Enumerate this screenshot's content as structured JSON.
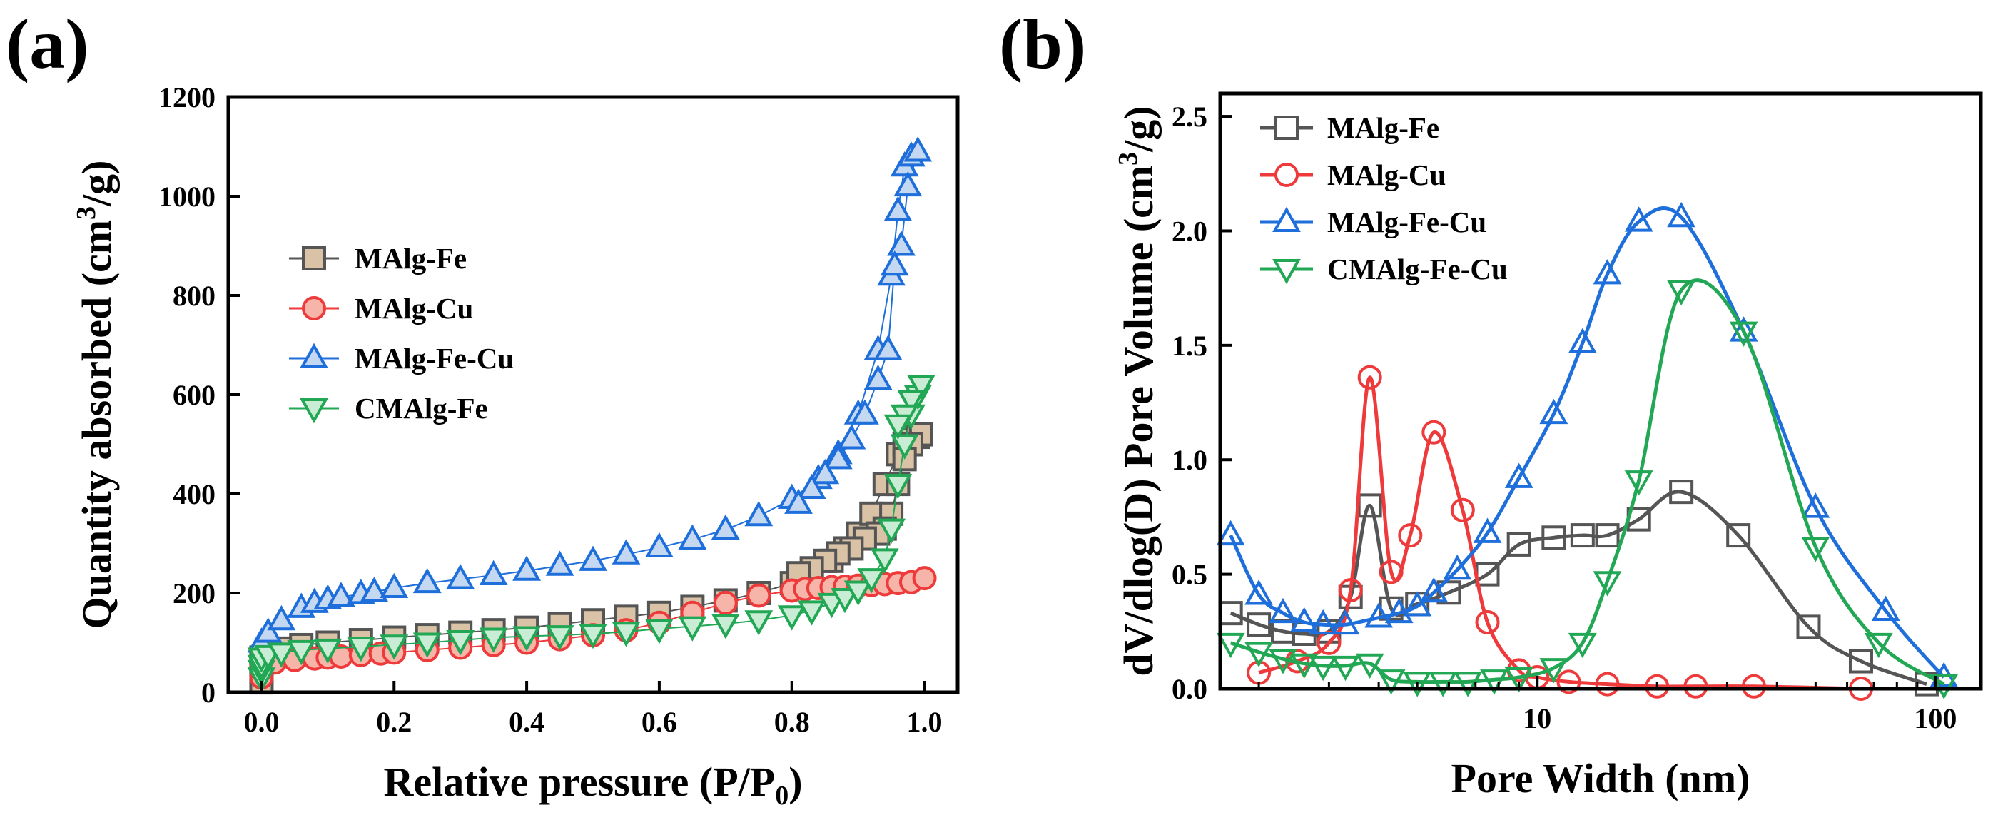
{
  "chart_data": [
    {
      "type": "scatter",
      "panel_label": "(a)",
      "xlabel_main": "Relative pressure (P/P",
      "xlabel_sub": "0",
      "xlabel_end": ")",
      "ylabel_pre": "Quantity absorbed (cm",
      "ylabel_sup": "3",
      "ylabel_post": "/g)",
      "xlim": [
        -0.05,
        1.05
      ],
      "ylim": [
        0,
        1200
      ],
      "x_ticks": [
        0.0,
        0.2,
        0.4,
        0.6,
        0.8,
        1.0
      ],
      "x_tick_labels": [
        "0.0",
        "0.2",
        "0.4",
        "0.6",
        "0.8",
        "1.0"
      ],
      "y_ticks": [
        0,
        200,
        400,
        600,
        800,
        1000,
        1200
      ],
      "y_tick_labels": [
        "0",
        "200",
        "400",
        "600",
        "800",
        "1000",
        "1200"
      ],
      "legend_position": "middle-left",
      "series": [
        {
          "name": "MAlg-Fe",
          "marker": "square",
          "color": "#555555",
          "fill": "#d9c2a5",
          "x": [
            0.0,
            0.0,
            0.0,
            0.0,
            0.01,
            0.03,
            0.06,
            0.1,
            0.15,
            0.2,
            0.25,
            0.3,
            0.35,
            0.4,
            0.45,
            0.5,
            0.55,
            0.6,
            0.65,
            0.7,
            0.75,
            0.8,
            0.83,
            0.86,
            0.88,
            0.9,
            0.92,
            0.94,
            0.96,
            0.97,
            0.98,
            0.99,
            0.995,
            0.98,
            0.97,
            0.96,
            0.95,
            0.94,
            0.93,
            0.91,
            0.89,
            0.87,
            0.85,
            0.83,
            0.81
          ],
          "y": [
            20,
            40,
            60,
            70,
            80,
            88,
            95,
            100,
            105,
            110,
            115,
            120,
            125,
            130,
            137,
            145,
            152,
            160,
            172,
            185,
            200,
            220,
            240,
            265,
            290,
            320,
            360,
            420,
            480,
            500,
            510,
            515,
            520,
            500,
            470,
            420,
            360,
            330,
            320,
            310,
            290,
            280,
            265,
            250,
            240
          ]
        },
        {
          "name": "MAlg-Cu",
          "marker": "circle",
          "color": "#ee3a3a",
          "fill": "#f7b4a8",
          "x": [
            0.0,
            0.0,
            0.0,
            0.02,
            0.05,
            0.08,
            0.1,
            0.12,
            0.15,
            0.18,
            0.2,
            0.25,
            0.3,
            0.35,
            0.4,
            0.45,
            0.5,
            0.55,
            0.6,
            0.65,
            0.7,
            0.75,
            0.8,
            0.82,
            0.84,
            0.86,
            0.88,
            0.9,
            0.92,
            0.94,
            0.96,
            0.98,
            1.0
          ],
          "y": [
            30,
            45,
            55,
            60,
            65,
            68,
            70,
            72,
            75,
            78,
            80,
            85,
            90,
            95,
            100,
            107,
            115,
            125,
            140,
            160,
            180,
            195,
            205,
            208,
            210,
            212,
            213,
            215,
            216,
            218,
            220,
            222,
            230
          ]
        },
        {
          "name": "MAlg-Fe-Cu",
          "marker": "triangle-up",
          "color": "#1e6fdc",
          "fill": "#c4d8f1",
          "x": [
            0.0,
            0.01,
            0.03,
            0.06,
            0.08,
            0.1,
            0.12,
            0.15,
            0.17,
            0.2,
            0.25,
            0.3,
            0.35,
            0.4,
            0.45,
            0.5,
            0.55,
            0.6,
            0.65,
            0.7,
            0.75,
            0.8,
            0.84,
            0.87,
            0.9,
            0.93,
            0.95,
            0.96,
            0.97,
            0.98,
            0.99,
            0.975,
            0.965,
            0.955,
            0.945,
            0.93,
            0.91,
            0.89,
            0.87,
            0.85,
            0.83,
            0.81
          ],
          "y": [
            100,
            120,
            145,
            170,
            180,
            187,
            192,
            198,
            202,
            210,
            220,
            228,
            236,
            245,
            255,
            265,
            278,
            292,
            308,
            328,
            355,
            390,
            430,
            480,
            560,
            690,
            840,
            970,
            1060,
            1080,
            1090,
            1020,
            900,
            860,
            690,
            630,
            560,
            510,
            470,
            440,
            410,
            380
          ]
        },
        {
          "name": "CMAlg-Fe",
          "marker": "triangle-down",
          "color": "#22a855",
          "fill": "#c8ecd4",
          "x": [
            0.0,
            0.0,
            0.0,
            0.0,
            0.01,
            0.03,
            0.06,
            0.1,
            0.15,
            0.2,
            0.25,
            0.3,
            0.35,
            0.4,
            0.45,
            0.5,
            0.55,
            0.6,
            0.65,
            0.7,
            0.75,
            0.8,
            0.83,
            0.86,
            0.88,
            0.9,
            0.92,
            0.94,
            0.95,
            0.96,
            0.97,
            0.98,
            0.99,
            0.995,
            0.98,
            0.97,
            0.96
          ],
          "y": [
            30,
            45,
            55,
            70,
            75,
            80,
            85,
            88,
            92,
            96,
            100,
            105,
            110,
            113,
            115,
            118,
            122,
            128,
            133,
            138,
            145,
            155,
            165,
            180,
            190,
            205,
            230,
            270,
            330,
            420,
            500,
            560,
            600,
            620,
            590,
            560,
            540
          ]
        }
      ]
    },
    {
      "type": "line",
      "x_scale": "log",
      "panel_label": "(b)",
      "xlabel": "Pore Width (nm)",
      "ylabel_pre": "dV/dlog(D) Pore Volume (cm",
      "ylabel_sup": "3",
      "ylabel_post": "/g)",
      "xlim": [
        1.6,
        130
      ],
      "ylim": [
        0,
        2.6
      ],
      "x_ticks": [
        10,
        100
      ],
      "x_tick_labels": [
        "10",
        "100"
      ],
      "x_minor_ticks": [
        2,
        3,
        4,
        5,
        6,
        7,
        8,
        9,
        20,
        30,
        40,
        50,
        60,
        70,
        80,
        90
      ],
      "y_ticks": [
        0.0,
        0.5,
        1.0,
        1.5,
        2.0,
        2.5
      ],
      "y_tick_labels": [
        "0.0",
        "0.5",
        "1.0",
        "1.5",
        "2.0",
        "2.5"
      ],
      "legend_position": "top-left",
      "series": [
        {
          "name": "MAlg-Fe",
          "marker": "square",
          "color": "#555555",
          "x": [
            1.7,
            2.0,
            2.3,
            2.6,
            3.0,
            3.4,
            3.8,
            4.3,
            5.0,
            6.0,
            7.5,
            9.0,
            11,
            13,
            15,
            18,
            23,
            32,
            48,
            65,
            95
          ],
          "y": [
            0.33,
            0.28,
            0.25,
            0.24,
            0.25,
            0.4,
            0.8,
            0.35,
            0.37,
            0.42,
            0.5,
            0.63,
            0.66,
            0.67,
            0.67,
            0.74,
            0.86,
            0.67,
            0.27,
            0.12,
            0.02
          ]
        },
        {
          "name": "MAlg-Cu",
          "marker": "circle",
          "color": "#ee3a3a",
          "x": [
            2.0,
            2.5,
            3.0,
            3.4,
            3.8,
            4.3,
            4.8,
            5.5,
            6.5,
            7.5,
            9.0,
            10,
            12,
            15,
            20,
            25,
            35,
            65
          ],
          "y": [
            0.07,
            0.12,
            0.2,
            0.43,
            1.36,
            0.51,
            0.67,
            1.12,
            0.78,
            0.29,
            0.08,
            0.05,
            0.03,
            0.02,
            0.01,
            0.01,
            0.01,
            0.0
          ]
        },
        {
          "name": "MAlg-Fe-Cu",
          "marker": "triangle-up",
          "color": "#1e6fdc",
          "x": [
            1.7,
            2.0,
            2.3,
            2.6,
            2.9,
            3.3,
            4.0,
            4.5,
            5.0,
            5.5,
            6.3,
            7.5,
            9.0,
            11,
            13,
            15,
            18,
            23,
            33,
            50,
            75,
            105
          ],
          "y": [
            0.67,
            0.41,
            0.33,
            0.29,
            0.28,
            0.28,
            0.31,
            0.33,
            0.36,
            0.42,
            0.52,
            0.68,
            0.92,
            1.2,
            1.51,
            1.81,
            2.04,
            2.06,
            1.56,
            0.79,
            0.34,
            0.05
          ]
        },
        {
          "name": "CMAlg-Fe-Cu",
          "marker": "triangle-down",
          "color": "#22a855",
          "x": [
            1.7,
            2.0,
            2.3,
            2.6,
            2.9,
            3.3,
            3.8,
            4.3,
            5.0,
            5.8,
            6.7,
            7.8,
            9.0,
            11,
            13,
            15,
            18,
            23,
            33,
            50,
            72,
            105
          ],
          "y": [
            0.2,
            0.16,
            0.13,
            0.11,
            0.1,
            0.1,
            0.11,
            0.04,
            0.03,
            0.03,
            0.03,
            0.04,
            0.05,
            0.09,
            0.2,
            0.47,
            0.91,
            1.74,
            1.56,
            0.62,
            0.2,
            0.02
          ]
        }
      ]
    }
  ]
}
